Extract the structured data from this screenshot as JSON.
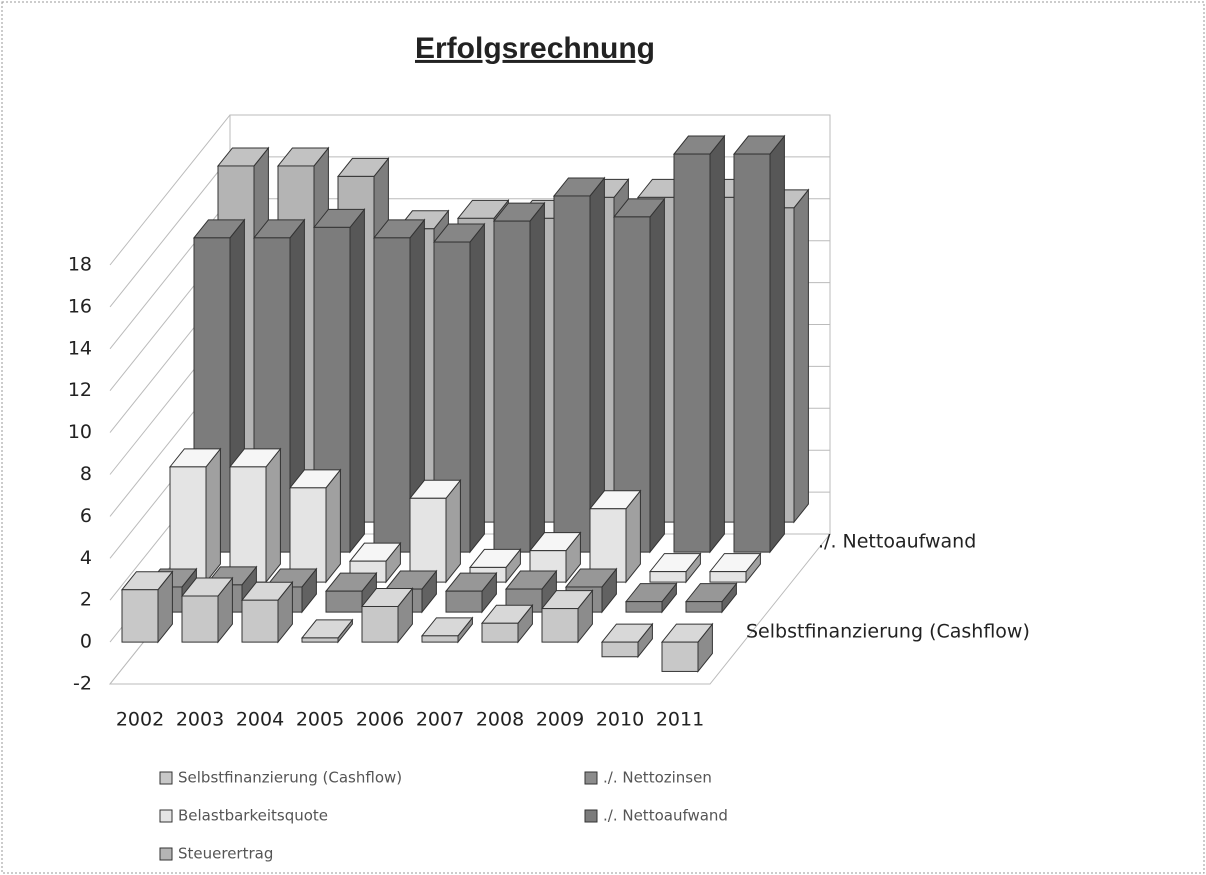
{
  "chart_data": {
    "type": "bar3d",
    "title": "Erfolgsrechnung",
    "categories": [
      "2002",
      "2003",
      "2004",
      "2005",
      "2006",
      "2007",
      "2008",
      "2009",
      "2010",
      "2011"
    ],
    "series": [
      {
        "name": "Selbstfinanzierung (Cashflow)",
        "color": "#c8c8c8",
        "values": [
          2.5,
          2.2,
          2.0,
          0.2,
          1.7,
          0.3,
          0.9,
          1.6,
          -0.7,
          -1.4
        ]
      },
      {
        "name": "./. Nettozinsen",
        "color": "#8c8c8c",
        "values": [
          1.2,
          1.3,
          1.2,
          1.0,
          1.1,
          1.0,
          1.1,
          1.2,
          0.5,
          0.5
        ]
      },
      {
        "name": "Belastbarkeitsquote",
        "color": "#e4e4e4",
        "values": [
          5.5,
          5.5,
          4.5,
          1.0,
          4.0,
          0.7,
          1.5,
          3.5,
          0.5,
          0.5
        ]
      },
      {
        "name": "./. Nettoaufwand",
        "color": "#7c7c7c",
        "values": [
          15.0,
          15.0,
          15.5,
          15.0,
          14.8,
          15.8,
          17.0,
          16.0,
          19.0,
          19.0
        ]
      },
      {
        "name": "Steuerertrag",
        "color": "#b4b4b4",
        "values": [
          17.0,
          17.0,
          16.5,
          14.0,
          14.5,
          14.5,
          15.5,
          15.5,
          15.5,
          15.0
        ]
      }
    ],
    "ylim": [
      -2,
      18
    ],
    "yticks": [
      -2,
      0,
      2,
      4,
      6,
      8,
      10,
      12,
      14,
      16,
      18
    ],
    "grid": true
  }
}
